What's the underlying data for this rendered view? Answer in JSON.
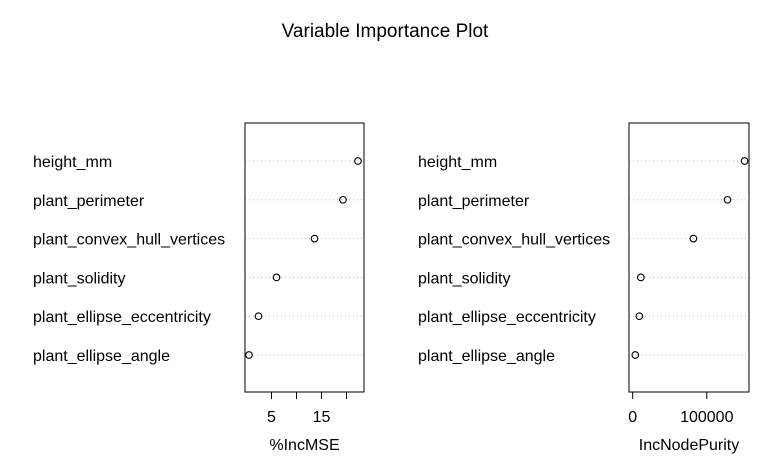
{
  "title": "Variable Importance Plot",
  "chart_data": [
    {
      "type": "scatter",
      "subtype": "dotchart",
      "categories": [
        "height_mm",
        "plant_perimeter",
        "plant_convex_hull_vertices",
        "plant_solidity",
        "plant_ellipse_eccentricity",
        "plant_ellipse_angle"
      ],
      "values": [
        22.3,
        19.3,
        13.6,
        6.0,
        2.4,
        0.5
      ],
      "xlabel": "%IncMSE",
      "xticks": [
        5,
        10,
        15,
        20
      ],
      "xticklabels": [
        "5",
        "",
        "15",
        ""
      ],
      "xlim": [
        -0.3,
        23.5
      ],
      "grid": "dotted horizontal guide lines"
    },
    {
      "type": "scatter",
      "subtype": "dotchart",
      "categories": [
        "height_mm",
        "plant_perimeter",
        "plant_convex_hull_vertices",
        "plant_solidity",
        "plant_ellipse_eccentricity",
        "plant_ellipse_angle"
      ],
      "values": [
        151000,
        128000,
        82000,
        11000,
        9000,
        3500
      ],
      "xlabel": "IncNodePurity",
      "xticks": [
        0,
        100000
      ],
      "xticklabels": [
        "0",
        "100000"
      ],
      "xlim": [
        -5000,
        157000
      ],
      "grid": "dotted horizontal guide lines"
    }
  ]
}
